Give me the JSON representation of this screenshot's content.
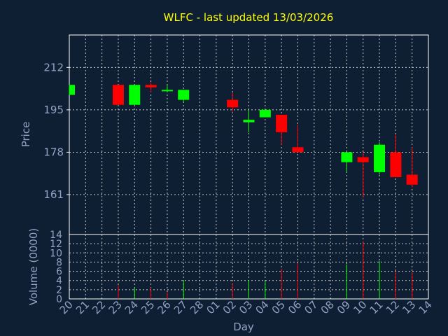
{
  "title": "WLFC - last updated 13/03/2026",
  "colors": {
    "up": "#00ff00",
    "down": "#ff0000",
    "background": "#0f1f33",
    "text": "#8fa3c4",
    "title": "#ffff00"
  },
  "chart_data": [
    {
      "type": "candlestick",
      "ylabel": "Price",
      "ylim": [
        145,
        225
      ],
      "yticks": [
        161,
        178,
        195,
        212
      ],
      "grid": true,
      "x_dates": [
        "20",
        "21",
        "22",
        "23",
        "24",
        "25",
        "26",
        "27",
        "28",
        "01",
        "02",
        "03",
        "04",
        "05",
        "06",
        "07",
        "08",
        "09",
        "10",
        "11",
        "12",
        "13",
        "14"
      ],
      "candles": [
        {
          "day": "20",
          "open": 201,
          "high": 205,
          "low": 201,
          "close": 205
        },
        {
          "day": "23",
          "open": 205,
          "high": 205,
          "low": 197,
          "close": 197
        },
        {
          "day": "24",
          "open": 197,
          "high": 205,
          "low": 197,
          "close": 205
        },
        {
          "day": "25",
          "open": 205,
          "high": 206,
          "low": 202,
          "close": 204
        },
        {
          "day": "26",
          "open": 203,
          "high": 205,
          "low": 202,
          "close": 203
        },
        {
          "day": "27",
          "open": 199,
          "high": 203,
          "low": 198,
          "close": 203
        },
        {
          "day": "02",
          "open": 199,
          "high": 202,
          "low": 194,
          "close": 196
        },
        {
          "day": "03",
          "open": 190,
          "high": 195,
          "low": 186,
          "close": 191
        },
        {
          "day": "04",
          "open": 192,
          "high": 195,
          "low": 192,
          "close": 195
        },
        {
          "day": "05",
          "open": 193,
          "high": 193,
          "low": 181,
          "close": 186
        },
        {
          "day": "06",
          "open": 180,
          "high": 189,
          "low": 178,
          "close": 178
        },
        {
          "day": "09",
          "open": 174,
          "high": 178,
          "low": 170,
          "close": 178
        },
        {
          "day": "10",
          "open": 176,
          "high": 178,
          "low": 160,
          "close": 174
        },
        {
          "day": "11",
          "open": 170,
          "high": 182,
          "low": 169,
          "close": 181
        },
        {
          "day": "12",
          "open": 178,
          "high": 185,
          "low": 168,
          "close": 168
        },
        {
          "day": "13",
          "open": 169,
          "high": 180,
          "low": 164,
          "close": 165
        }
      ]
    },
    {
      "type": "bar",
      "xlabel": "Day",
      "ylabel": "Volume (0000)",
      "ylim": [
        0,
        14
      ],
      "yticks": [
        0,
        2,
        4,
        6,
        8,
        10,
        12,
        14
      ],
      "bars": [
        {
          "day": "23",
          "value": 3,
          "dir": "down"
        },
        {
          "day": "24",
          "value": 2.5,
          "dir": "up"
        },
        {
          "day": "25",
          "value": 2.5,
          "dir": "down"
        },
        {
          "day": "26",
          "value": 1.5,
          "dir": "down"
        },
        {
          "day": "27",
          "value": 4,
          "dir": "up"
        },
        {
          "day": "02",
          "value": 3.5,
          "dir": "down"
        },
        {
          "day": "03",
          "value": 4,
          "dir": "up"
        },
        {
          "day": "04",
          "value": 3.8,
          "dir": "up"
        },
        {
          "day": "05",
          "value": 6.5,
          "dir": "down"
        },
        {
          "day": "06",
          "value": 7.8,
          "dir": "down"
        },
        {
          "day": "09",
          "value": 7.5,
          "dir": "up"
        },
        {
          "day": "10",
          "value": 12.5,
          "dir": "down"
        },
        {
          "day": "11",
          "value": 8.2,
          "dir": "up"
        },
        {
          "day": "12",
          "value": 6,
          "dir": "down"
        },
        {
          "day": "13",
          "value": 5.8,
          "dir": "down"
        }
      ]
    }
  ]
}
